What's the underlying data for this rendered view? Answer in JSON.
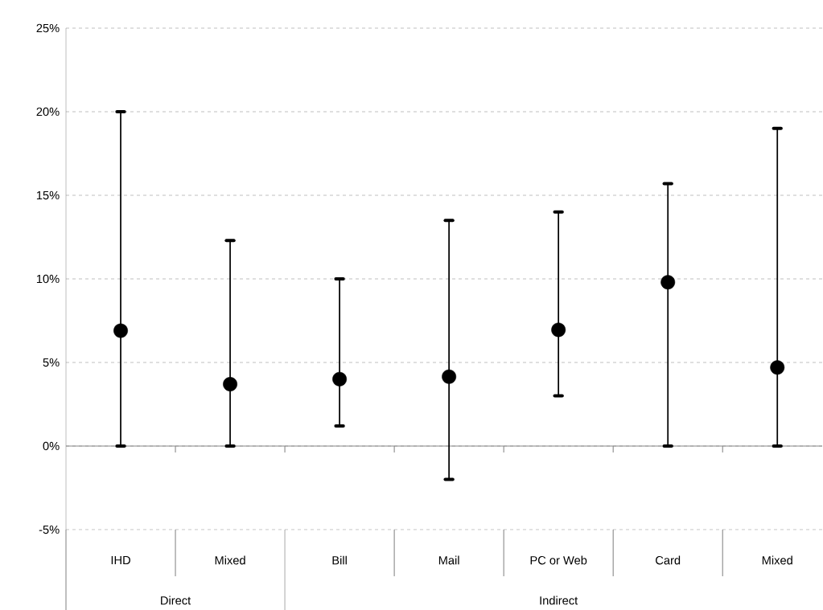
{
  "chart_data": {
    "type": "scatter",
    "marker": "circle",
    "color": "#000000",
    "categories": [
      "IHD",
      "Mixed",
      "Bill",
      "Mail",
      "PC or Web",
      "Card",
      "Mixed"
    ],
    "values": [
      6.9,
      3.7,
      4.0,
      4.15,
      6.95,
      9.8,
      4.7
    ],
    "errors": [
      [
        0,
        20
      ],
      [
        0,
        12.3
      ],
      [
        1.2,
        10
      ],
      [
        -2,
        13.5
      ],
      [
        3,
        14
      ],
      [
        0,
        15.7
      ],
      [
        0,
        19
      ]
    ],
    "ylim": [
      -5,
      25
    ],
    "yticks": [
      {
        "value": -5,
        "label": "-5%"
      },
      {
        "value": 0,
        "label": "0%"
      },
      {
        "value": 5,
        "label": "5%"
      },
      {
        "value": 10,
        "label": "10%"
      },
      {
        "value": 15,
        "label": "15%"
      },
      {
        "value": 20,
        "label": "20%"
      },
      {
        "value": 25,
        "label": "25%"
      }
    ],
    "grid": "y",
    "annotations": [
      "Direct",
      "Indirect"
    ]
  }
}
